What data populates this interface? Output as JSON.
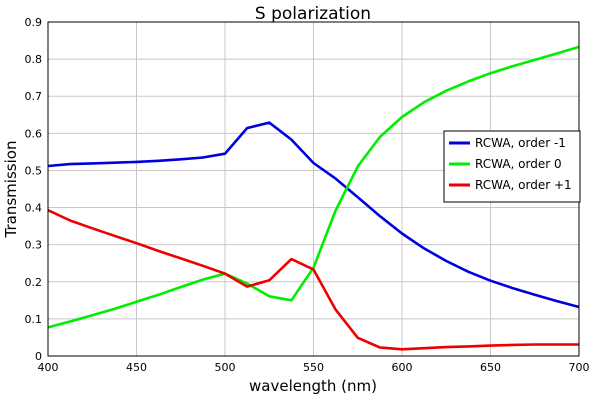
{
  "chart_data": {
    "type": "line",
    "title": "S polarization",
    "xlabel": "wavelength (nm)",
    "ylabel": "Transmission",
    "xlim": [
      400,
      700
    ],
    "ylim": [
      0,
      0.9
    ],
    "xticks": [
      "400",
      "450",
      "500",
      "550",
      "600",
      "650",
      "700"
    ],
    "yticks": [
      "0",
      "0.1",
      "0.2",
      "0.3",
      "0.4",
      "0.5",
      "0.6",
      "0.7",
      "0.8",
      "0.9"
    ],
    "grid": true,
    "legend_position": "right",
    "series": [
      {
        "name": "RCWA, order -1",
        "color": "#0000dd",
        "x": [
          400,
          412.5,
          425,
          437.5,
          450,
          462.5,
          475,
          487.5,
          500,
          512.5,
          525,
          537.5,
          550,
          562.5,
          575,
          587.5,
          600,
          612.5,
          625,
          637.5,
          650,
          662.5,
          675,
          687.5,
          700
        ],
        "y": [
          0.512,
          0.517,
          0.519,
          0.521,
          0.523,
          0.526,
          0.53,
          0.535,
          0.545,
          0.614,
          0.629,
          0.583,
          0.52,
          0.478,
          0.428,
          0.377,
          0.33,
          0.29,
          0.256,
          0.227,
          0.203,
          0.183,
          0.165,
          0.148,
          0.132
        ]
      },
      {
        "name": "RCWA, order 0",
        "color": "#00ee00",
        "x": [
          400,
          412.5,
          425,
          437.5,
          450,
          462.5,
          475,
          487.5,
          500,
          512.5,
          525,
          537.5,
          550,
          562.5,
          575,
          587.5,
          600,
          612.5,
          625,
          637.5,
          650,
          662.5,
          675,
          687.5,
          700
        ],
        "y": [
          0.077,
          0.093,
          0.11,
          0.127,
          0.146,
          0.165,
          0.186,
          0.206,
          0.222,
          0.195,
          0.161,
          0.15,
          0.238,
          0.392,
          0.511,
          0.59,
          0.644,
          0.684,
          0.715,
          0.74,
          0.762,
          0.781,
          0.798,
          0.815,
          0.833
        ]
      },
      {
        "name": "RCWA, order +1",
        "color": "#ee0000",
        "x": [
          400,
          412.5,
          425,
          437.5,
          450,
          462.5,
          475,
          487.5,
          500,
          512.5,
          525,
          537.5,
          550,
          562.5,
          575,
          587.5,
          600,
          612.5,
          625,
          637.5,
          650,
          662.5,
          675,
          687.5,
          700
        ],
        "y": [
          0.393,
          0.365,
          0.344,
          0.324,
          0.304,
          0.283,
          0.263,
          0.243,
          0.222,
          0.187,
          0.204,
          0.261,
          0.233,
          0.125,
          0.049,
          0.023,
          0.018,
          0.021,
          0.024,
          0.026,
          0.028,
          0.03,
          0.031,
          0.031,
          0.031
        ]
      }
    ]
  }
}
